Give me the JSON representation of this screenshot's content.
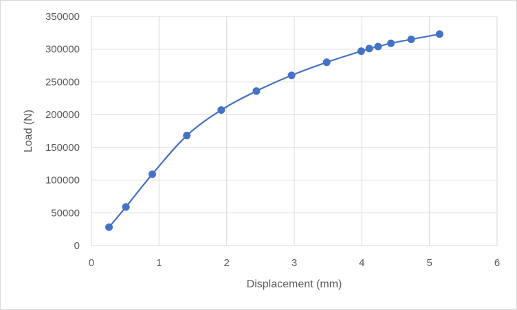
{
  "chart_data": {
    "type": "scatter",
    "xlabel": "Displacement (mm)",
    "ylabel": "Load (N)",
    "xlim": [
      0,
      6
    ],
    "ylim": [
      0,
      350000
    ],
    "xticks": [
      0,
      1,
      2,
      3,
      4,
      5,
      6
    ],
    "yticks": [
      0,
      50000,
      100000,
      150000,
      200000,
      250000,
      300000,
      350000
    ],
    "grid": true,
    "legend": "none",
    "smooth_line": true,
    "color": "#4472c4",
    "series": [
      {
        "x": [
          0.26,
          0.51,
          0.9,
          1.41,
          1.92,
          2.44,
          2.96,
          3.48,
          3.99,
          4.11,
          4.24,
          4.43,
          4.73,
          5.15
        ],
        "y": [
          28000,
          59000,
          109000,
          168000,
          207000,
          236000,
          260000,
          280000,
          297000,
          301000,
          304000,
          309000,
          315000,
          323000
        ]
      }
    ]
  }
}
